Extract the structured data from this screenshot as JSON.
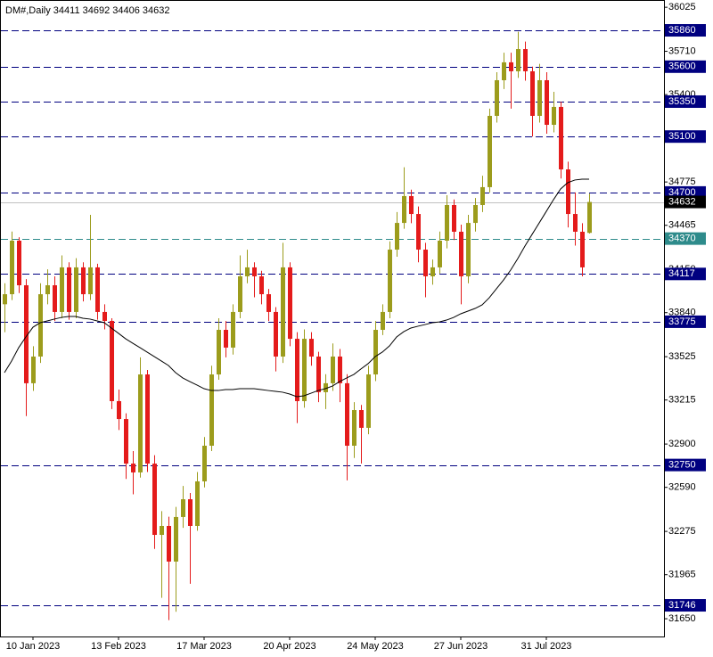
{
  "chart_data": {
    "type": "candlestick",
    "title": "DM#,Daily  34411 34692 34406 34632",
    "categories": [
      null,
      null,
      null,
      null,
      "10 Jan 2023",
      null,
      null,
      null,
      null,
      null,
      null,
      null,
      null,
      null,
      null,
      null,
      "13 Feb 2023",
      null,
      null,
      null,
      null,
      null,
      null,
      null,
      null,
      null,
      null,
      null,
      "17 Mar 2023",
      null,
      null,
      null,
      null,
      null,
      null,
      null,
      null,
      null,
      null,
      null,
      "20 Apr 2023",
      null,
      null,
      null,
      null,
      null,
      null,
      null,
      null,
      null,
      null,
      null,
      "24 May 2023",
      null,
      null,
      null,
      null,
      null,
      null,
      null,
      null,
      null,
      null,
      null,
      "27 Jun 2023",
      null,
      null,
      null,
      null,
      null,
      null,
      null,
      null,
      null,
      null,
      null,
      "31 Jul 2023",
      null,
      null,
      null,
      null,
      null,
      null
    ],
    "candles": [
      [
        33900,
        34050,
        33700,
        33972
      ],
      [
        33972,
        34420,
        33930,
        34355
      ],
      [
        34355,
        34380,
        33980,
        34036
      ],
      [
        34036,
        34080,
        33100,
        33335
      ],
      [
        33335,
        33600,
        33280,
        33526
      ],
      [
        33526,
        34050,
        33480,
        33972
      ],
      [
        33972,
        34150,
        33900,
        34036
      ],
      [
        34036,
        34100,
        33780,
        33845
      ],
      [
        33845,
        34250,
        33800,
        34164
      ],
      [
        34164,
        34200,
        33790,
        33845
      ],
      [
        33845,
        34230,
        33800,
        34164
      ],
      [
        34164,
        34200,
        33920,
        33972
      ],
      [
        33972,
        34540,
        33930,
        34164
      ],
      [
        34164,
        34190,
        33790,
        33845
      ],
      [
        33845,
        33900,
        33720,
        33781
      ],
      [
        33781,
        33800,
        33150,
        33207
      ],
      [
        33207,
        33290,
        33000,
        33079
      ],
      [
        33079,
        33120,
        32650,
        32760
      ],
      [
        32760,
        32850,
        32540,
        32697
      ],
      [
        32697,
        33520,
        32660,
        33398
      ],
      [
        33398,
        33430,
        32700,
        32760
      ],
      [
        32760,
        32820,
        32150,
        32250
      ],
      [
        32250,
        32420,
        31800,
        32314
      ],
      [
        32314,
        32380,
        31640,
        32059
      ],
      [
        32059,
        32450,
        31700,
        32378
      ],
      [
        32378,
        32600,
        32300,
        32505
      ],
      [
        32505,
        32550,
        31900,
        32314
      ],
      [
        32314,
        32700,
        32280,
        32633
      ],
      [
        32633,
        32950,
        32590,
        32888
      ],
      [
        32888,
        33460,
        32850,
        33398
      ],
      [
        33398,
        33800,
        33360,
        33717
      ],
      [
        33717,
        33780,
        33520,
        33590
      ],
      [
        33590,
        33900,
        33540,
        33845
      ],
      [
        33845,
        34250,
        33800,
        34100
      ],
      [
        34100,
        34290,
        34050,
        34164
      ],
      [
        34164,
        34200,
        33950,
        34100
      ],
      [
        34100,
        34140,
        33900,
        33972
      ],
      [
        33972,
        34010,
        33780,
        33845
      ],
      [
        33845,
        33880,
        33420,
        33526
      ],
      [
        33526,
        34340,
        33480,
        34164
      ],
      [
        34164,
        34200,
        33600,
        33653
      ],
      [
        33653,
        33700,
        33050,
        33207
      ],
      [
        33207,
        33720,
        33160,
        33653
      ],
      [
        33653,
        33700,
        33460,
        33526
      ],
      [
        33526,
        33560,
        33200,
        33271
      ],
      [
        33271,
        33400,
        33150,
        33335
      ],
      [
        33335,
        33620,
        33280,
        33526
      ],
      [
        33526,
        33580,
        33200,
        33335
      ],
      [
        33335,
        33400,
        32640,
        32888
      ],
      [
        32888,
        33200,
        32800,
        33143
      ],
      [
        33143,
        33180,
        32760,
        33016
      ],
      [
        33016,
        33460,
        32970,
        33398
      ],
      [
        33398,
        33780,
        33350,
        33717
      ],
      [
        33717,
        33900,
        33680,
        33845
      ],
      [
        33845,
        34350,
        33800,
        34291
      ],
      [
        34291,
        34560,
        34240,
        34482
      ],
      [
        34482,
        34880,
        34440,
        34674
      ],
      [
        34674,
        34720,
        34480,
        34546
      ],
      [
        34546,
        34600,
        34200,
        34291
      ],
      [
        34291,
        34340,
        33950,
        34100
      ],
      [
        34100,
        34220,
        34040,
        34164
      ],
      [
        34164,
        34420,
        34120,
        34355
      ],
      [
        34355,
        34680,
        34300,
        34610
      ],
      [
        34610,
        34650,
        34360,
        34419
      ],
      [
        34419,
        34470,
        33900,
        34100
      ],
      [
        34100,
        34540,
        34050,
        34482
      ],
      [
        34482,
        34660,
        34420,
        34610
      ],
      [
        34610,
        34820,
        34560,
        34738
      ],
      [
        34738,
        35300,
        34700,
        35248
      ],
      [
        35248,
        35560,
        35200,
        35503
      ],
      [
        35503,
        35700,
        35440,
        35631
      ],
      [
        35631,
        35700,
        35300,
        35567
      ],
      [
        35567,
        35850,
        35520,
        35726
      ],
      [
        35726,
        35780,
        35500,
        35567
      ],
      [
        35567,
        35600,
        35100,
        35248
      ],
      [
        35248,
        35620,
        35200,
        35503
      ],
      [
        35503,
        35560,
        35120,
        35184
      ],
      [
        35184,
        35420,
        35130,
        35312
      ],
      [
        35312,
        35350,
        34800,
        34865
      ],
      [
        34865,
        34920,
        34450,
        34546
      ],
      [
        34546,
        34700,
        34320,
        34419
      ],
      [
        34419,
        34480,
        34100,
        34164
      ],
      [
        34411,
        34692,
        34406,
        34632
      ]
    ],
    "up_color": "#9c9c1c",
    "down_color": "#e41b1b",
    "moving_average": {
      "color": "#000000",
      "values": [
        33411,
        33494,
        33590,
        33666,
        33736,
        33768,
        33781,
        33794,
        33806,
        33813,
        33813,
        33800,
        33794,
        33781,
        33768,
        33730,
        33692,
        33653,
        33621,
        33590,
        33558,
        33526,
        33494,
        33462,
        33411,
        33373,
        33347,
        33322,
        33296,
        33283,
        33283,
        33290,
        33290,
        33296,
        33296,
        33296,
        33290,
        33283,
        33277,
        33271,
        33258,
        33239,
        33245,
        33264,
        33283,
        33296,
        33315,
        33347,
        33373,
        33398,
        33437,
        33475,
        33526,
        33558,
        33602,
        33666,
        33704,
        33730,
        33743,
        33755,
        33768,
        33774,
        33787,
        33806,
        33832,
        33851,
        33870,
        33896,
        33947,
        34011,
        34074,
        34145,
        34227,
        34317,
        34400,
        34482,
        34565,
        34648,
        34725,
        34770,
        34789,
        34795,
        34795
      ]
    },
    "levels": [
      {
        "value": 35860,
        "color": "#000080"
      },
      {
        "value": 35600,
        "color": "#000080"
      },
      {
        "value": 35350,
        "color": "#000080"
      },
      {
        "value": 35100,
        "color": "#000080"
      },
      {
        "value": 34700,
        "color": "#000080"
      },
      {
        "value": 34370,
        "color": "#2e8b8b"
      },
      {
        "value": 34117,
        "color": "#000080"
      },
      {
        "value": 33775,
        "color": "#000080"
      },
      {
        "value": 32750,
        "color": "#000080"
      },
      {
        "value": 31746,
        "color": "#000080"
      }
    ],
    "last_price": 34632,
    "last_price_color": "#000000",
    "ylim": [
      31523,
      36077
    ],
    "yticks": [
      36025,
      35710,
      35400,
      34775,
      34465,
      34150,
      33840,
      33525,
      33215,
      32900,
      32590,
      32275,
      31965,
      31650
    ]
  }
}
